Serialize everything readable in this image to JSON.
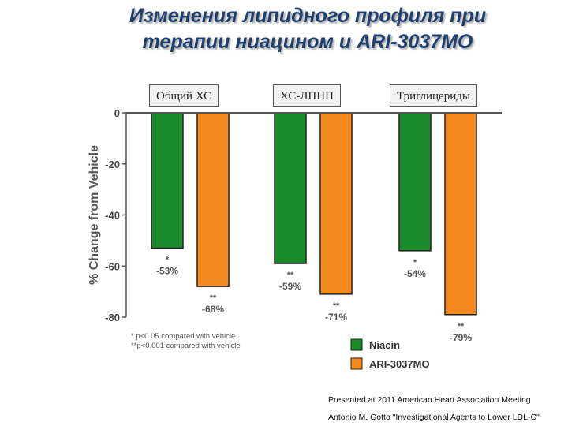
{
  "title": {
    "line1": "Изменения липидного профиля при",
    "line2": "терапии ниацином и ARI-3037MO"
  },
  "chart_data": {
    "type": "bar",
    "categories": [
      "Общий ХС",
      "ХС-ЛПНП",
      "Триглицериды"
    ],
    "series": [
      {
        "name": "Niacin",
        "color": "#1b8a2a",
        "values": [
          -53,
          -59,
          -54
        ],
        "labels": [
          "-53%",
          "-59%",
          "-54%"
        ],
        "sig": [
          "*",
          "**",
          "*"
        ]
      },
      {
        "name": "ARI-3037MO",
        "color": "#f58a1f",
        "values": [
          -68,
          -71,
          -79
        ],
        "labels": [
          "-68%",
          "-71%",
          "-79%"
        ],
        "sig": [
          "**",
          "**",
          "**"
        ]
      }
    ],
    "ylabel": "% Change from Vehicle",
    "ylim": [
      -80,
      0
    ],
    "yticks": [
      "0",
      "-20",
      "-40",
      "-60",
      "-80"
    ],
    "ytick_values": [
      0,
      -20,
      -40,
      -60,
      -80
    ],
    "footnotes": [
      "* p<0.05 compared with vehicle",
      "**p<0.001 compared with vehicle"
    ],
    "legend_position": "bottom-right"
  },
  "credits": {
    "line1": "Presented at 2011 American Heart Association Meeting",
    "line2": "Antonio M. Gotto \"Investigational Agents to Lower LDL-C\""
  }
}
